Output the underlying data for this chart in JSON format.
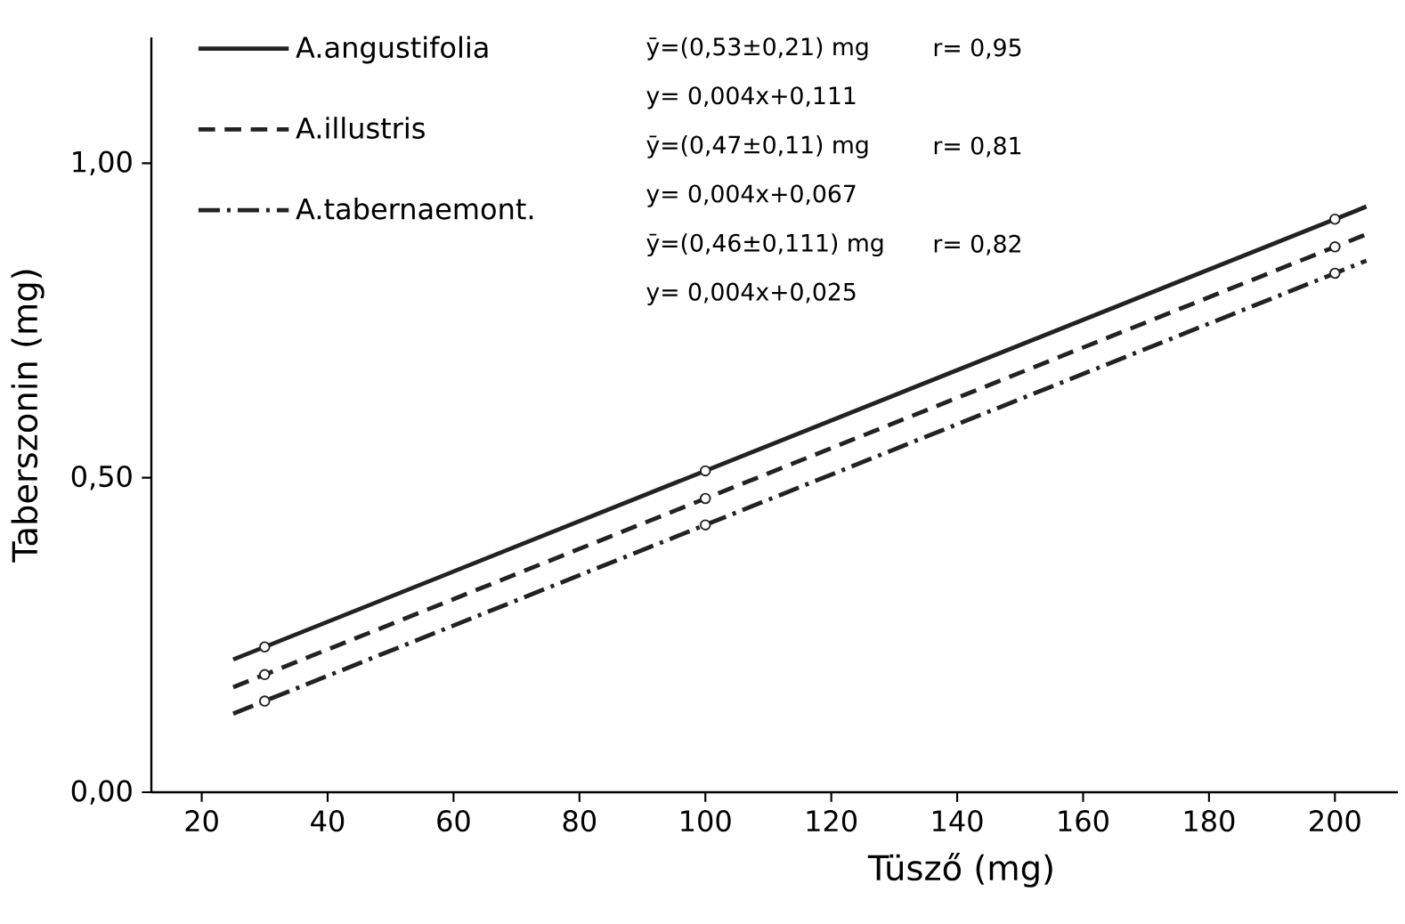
{
  "chart_data": {
    "type": "line",
    "xlabel": "Tüsző (mg)",
    "ylabel": "Taberszonin (mg)",
    "xlim": [
      12,
      210
    ],
    "ylim": [
      0,
      1.2
    ],
    "xticks": [
      20,
      40,
      60,
      80,
      100,
      120,
      140,
      160,
      180,
      200
    ],
    "yticks": [
      {
        "value": 0,
        "label": "0,00"
      },
      {
        "value": 0.5,
        "label": "0,50"
      },
      {
        "value": 1.0,
        "label": "1,00"
      }
    ],
    "grid": false,
    "legend": "top",
    "series": [
      {
        "name": "A.angustifolia",
        "type": "line",
        "line_style": "solid",
        "color": "#222222",
        "x": [
          25,
          205
        ],
        "values": [
          0.211,
          0.931
        ]
      },
      {
        "name": "A.illustris",
        "type": "line",
        "line_style": "dashed",
        "color": "#222222",
        "x": [
          25,
          205
        ],
        "values": [
          0.167,
          0.887
        ]
      },
      {
        "name": "A.tabernaemont.",
        "type": "line",
        "line_style": "dashdot",
        "color": "#222222",
        "x": [
          25,
          205
        ],
        "values": [
          0.125,
          0.845
        ]
      },
      {
        "type": "scatter",
        "marker": "circle",
        "color": "#222222",
        "x": [
          30,
          100,
          200
        ],
        "values": [
          0.231,
          0.511,
          0.911
        ]
      },
      {
        "type": "scatter",
        "marker": "circle",
        "color": "#222222",
        "x": [
          30,
          100,
          200
        ],
        "values": [
          0.187,
          0.467,
          0.867
        ]
      },
      {
        "type": "scatter",
        "marker": "circle",
        "color": "#222222",
        "x": [
          30,
          100,
          200
        ],
        "values": [
          0.145,
          0.425,
          0.825
        ]
      }
    ],
    "annotations": [
      "ȳ=(0,53±0,21) mg",
      "r= 0,95",
      "y= 0,004x+0,111",
      "ȳ=(0,47±0,11) mg",
      "r= 0,81",
      "y= 0,004x+0,067",
      "ȳ=(0,46±0,111) mg",
      "r= 0,82",
      "y= 0,004x+0,025"
    ]
  }
}
